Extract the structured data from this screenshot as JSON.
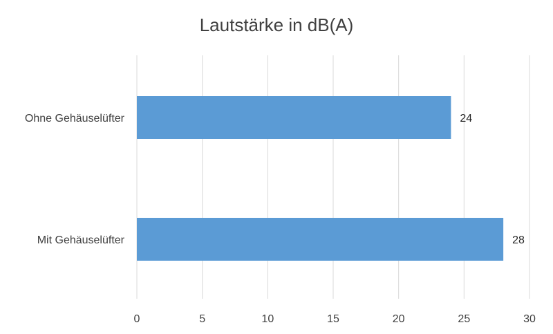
{
  "chart_data": {
    "type": "bar",
    "orientation": "horizontal",
    "title": "Lautstärke in dB(A)",
    "categories": [
      "Ohne Gehäuselüfter",
      "Mit Gehäuselüfter"
    ],
    "values": [
      24,
      28
    ],
    "data_labels": [
      "24",
      "28"
    ],
    "xlim": [
      0,
      30
    ],
    "xticks": [
      0,
      5,
      10,
      15,
      20,
      25,
      30
    ],
    "grid": true,
    "legend": "none",
    "bar_color": "#5b9bd5"
  }
}
